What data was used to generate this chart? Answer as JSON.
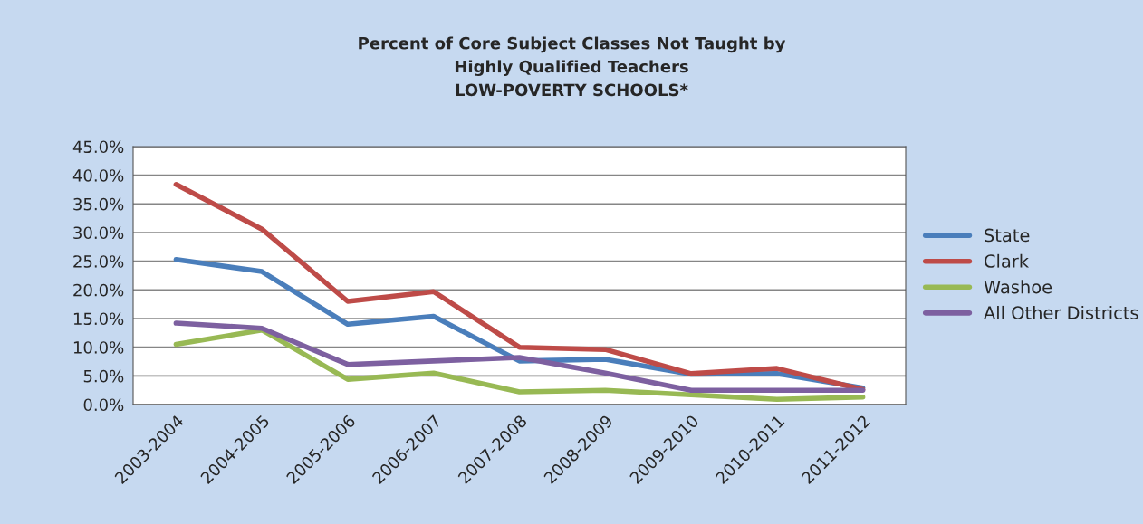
{
  "chart_data": {
    "type": "line",
    "title": "Percent of Core Subject Classes Not Taught by\nHighly Qualified Teachers\nLOW-POVERTY SCHOOLS*",
    "categories": [
      "2003-2004",
      "2004-2005",
      "2005-2006",
      "2006-2007",
      "2007-2008",
      "2008-2009",
      "2009-2010",
      "2010-2011",
      "2011-2012"
    ],
    "series": [
      {
        "name": "State",
        "color": "#4a7ebb",
        "values": [
          25.3,
          23.2,
          14.0,
          15.4,
          7.6,
          7.9,
          5.3,
          5.4,
          2.9
        ]
      },
      {
        "name": "Clark",
        "color": "#be4b48",
        "values": [
          38.4,
          30.6,
          18.0,
          19.7,
          10.0,
          9.6,
          5.4,
          6.3,
          2.6
        ]
      },
      {
        "name": "Washoe",
        "color": "#98b954",
        "values": [
          10.5,
          13.0,
          4.4,
          5.5,
          2.2,
          2.5,
          1.7,
          0.9,
          1.3
        ]
      },
      {
        "name": "All Other Districts",
        "color": "#7d60a0",
        "values": [
          14.2,
          13.3,
          7.0,
          7.6,
          8.2,
          5.5,
          2.5,
          2.5,
          2.5
        ]
      }
    ],
    "ylim": [
      0,
      45
    ],
    "yticks": [
      {
        "value": 0,
        "label": "0.0%"
      },
      {
        "value": 5,
        "label": "5.0%"
      },
      {
        "value": 10,
        "label": "10.0%"
      },
      {
        "value": 15,
        "label": "15.0%"
      },
      {
        "value": 20,
        "label": "20.0%"
      },
      {
        "value": 25,
        "label": "25.0%"
      },
      {
        "value": 30,
        "label": "30.0%"
      },
      {
        "value": 35,
        "label": "35.0%"
      },
      {
        "value": 40,
        "label": "40.0%"
      },
      {
        "value": 45,
        "label": "45.0%"
      }
    ],
    "grid": "y",
    "legend": "right",
    "marker": "none",
    "line_style": "solid"
  }
}
